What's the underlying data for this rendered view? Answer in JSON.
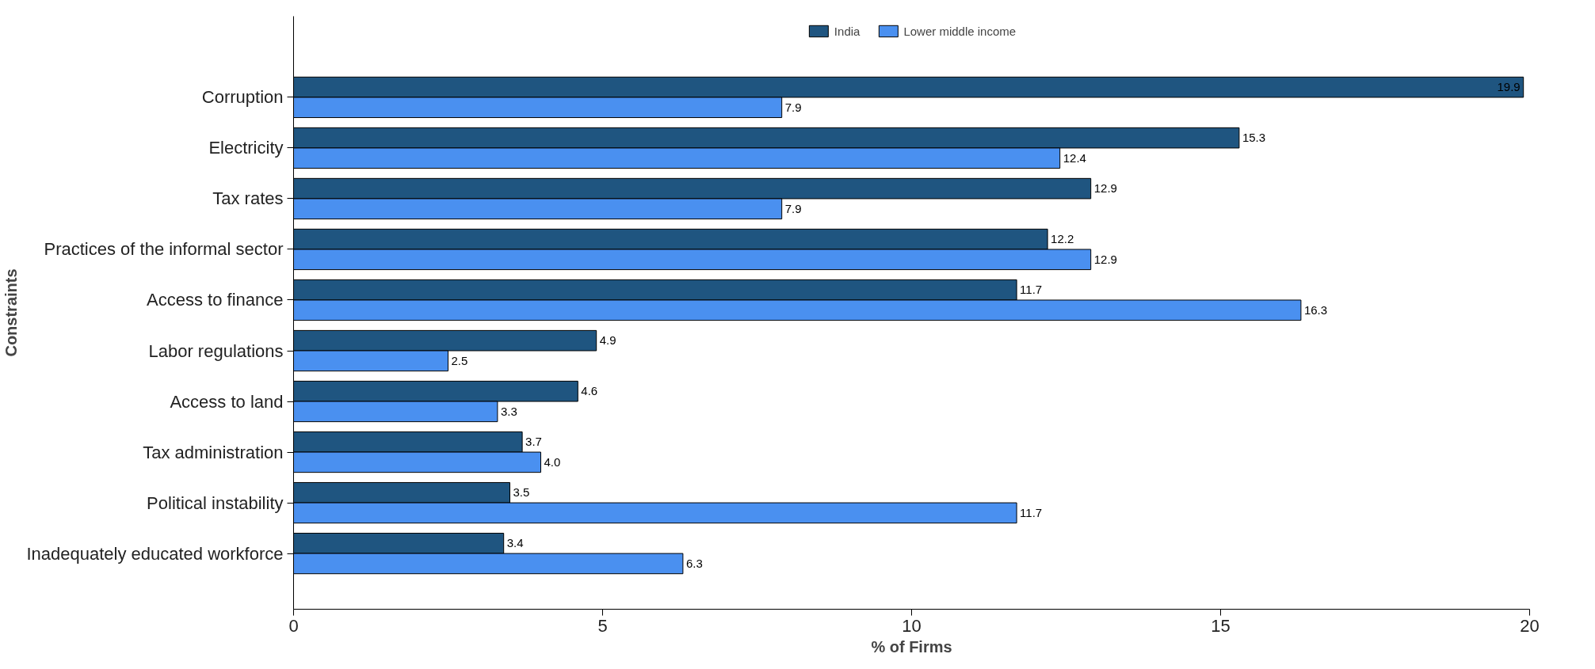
{
  "chart_data": {
    "type": "bar",
    "orientation": "horizontal",
    "xlabel": "% of Firms",
    "ylabel": "Constraints",
    "categories": [
      "Corruption",
      "Electricity",
      "Tax rates",
      "Practices of the informal sector",
      "Access to finance",
      "Labor regulations",
      "Access to land",
      "Tax administration",
      "Political instability",
      "Inadequately educated workforce"
    ],
    "series": [
      {
        "name": "India",
        "color": "#1f5580",
        "values": [
          19.9,
          15.3,
          12.9,
          12.2,
          11.7,
          4.9,
          4.6,
          3.7,
          3.5,
          3.4
        ],
        "value_labels": [
          "19.9",
          "15.3",
          "12.9",
          "12.2",
          "11.7",
          "4.9",
          "4.6",
          "3.7",
          "3.5",
          "3.4"
        ]
      },
      {
        "name": "Lower middle income",
        "color": "#4a90f0",
        "values": [
          7.9,
          12.4,
          7.9,
          12.9,
          16.3,
          2.5,
          3.3,
          4.0,
          11.7,
          6.3
        ],
        "value_labels": [
          "7.9",
          "12.4",
          "7.9",
          "12.9",
          "16.3",
          "2.5",
          "3.3",
          "4.0",
          "11.7",
          "6.3"
        ]
      }
    ],
    "xlim": [
      0,
      20
    ],
    "xticks": [
      0,
      5,
      10,
      15,
      20
    ],
    "grid": false,
    "legend": "top"
  }
}
